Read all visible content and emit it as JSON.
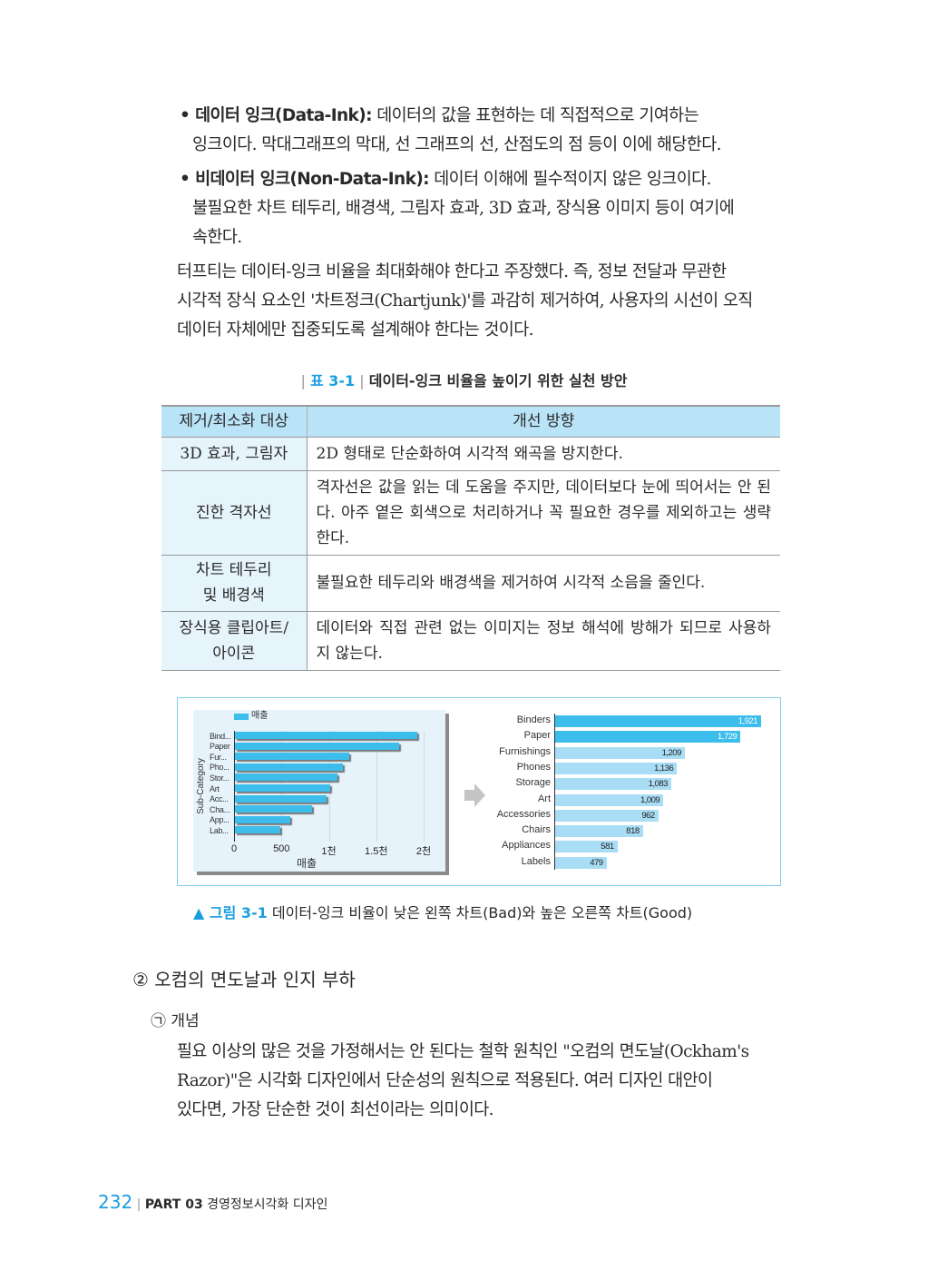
{
  "bullets": [
    {
      "term": "• 데이터 잉크(Data-Ink):",
      "lines": [
        " 데이터의 값을 표현하는 데 직접적으로 기여하는",
        "잉크이다. 막대그래프의 막대, 선 그래프의 선, 산점도의 점 등이 이에 해당한다."
      ]
    },
    {
      "term": "• 비데이터 잉크(Non-Data-Ink):",
      "lines": [
        " 데이터 이해에 필수적이지 않은 잉크이다.",
        "불필요한 차트 테두리, 배경색, 그림자 효과, 3D 효과, 장식용 이미지 등이 여기에",
        "속한다."
      ]
    }
  ],
  "paragraph1": [
    "터프티는 데이터-잉크 비율을 최대화해야 한다고 주장했다. 즉, 정보 전달과 무관한",
    "시각적 장식 요소인 '차트정크(Chartjunk)'를 과감히 제거하여, 사용자의 시선이 오직",
    "데이터 자체에만 집중되도록 설계해야 한다는 것이다."
  ],
  "table": {
    "caption_num": "표 3-1",
    "caption_text": "데이터-잉크 비율을 높이기 위한 실천 방안",
    "headers": [
      "제거/최소화 대상",
      "개선 방향"
    ],
    "rows": [
      [
        "3D 효과, 그림자",
        "2D 형태로 단순화하여 시각적 왜곡을 방지한다."
      ],
      [
        "진한 격자선",
        "격자선은 값을 읽는 데 도움을 주지만, 데이터보다 눈에 띄어서는 안 된다. 아주 옅은 회색으로 처리하거나 꼭 필요한 경우를 제외하고는 생략한다."
      ],
      [
        "차트 테두리 및 배경색",
        "불필요한 테두리와 배경색을 제거하여 시각적 소음을 줄인다."
      ],
      [
        "장식용 클립아트/ 아이콘",
        "데이터와 직접 관련 없는 이미지는 정보 해석에 방해가 되므로 사용하지 않는다."
      ]
    ]
  },
  "figure": {
    "caption_num": "▲ 그림 3-1",
    "caption_text": "데이터-잉크 비율이 낮은 왼쪽 차트(Bad)와 높은 오른쪽 차트(Good)",
    "bad_chart": {
      "type": "bar",
      "legend": "매출",
      "ylabel": "Sub-Category",
      "xlabel": "매출",
      "xticks": [
        "0",
        "500",
        "1천",
        "1.5천",
        "2천"
      ],
      "xlim": [
        0,
        2000
      ],
      "categories": [
        "Bind...",
        "Paper",
        "Fur...",
        "Pho...",
        "Stor...",
        "Art",
        "Acc...",
        "Cha...",
        "App...",
        "Lab..."
      ]
    },
    "good_chart": {
      "type": "bar",
      "categories": [
        "Binders",
        "Paper",
        "Furnishings",
        "Phones",
        "Storage",
        "Art",
        "Accessories",
        "Chairs",
        "Appliances",
        "Labels"
      ],
      "labels": [
        "1,921",
        "1,729",
        "1,209",
        "1,136",
        "1,083",
        "1,009",
        "962",
        "818",
        "581",
        "479"
      ],
      "highlight_count": 2,
      "highlight_color": "#3dbdeb",
      "base_color": "#a9dcf5"
    },
    "values": [
      1921,
      1729,
      1209,
      1136,
      1083,
      1009,
      962,
      818,
      581,
      479
    ],
    "bar_color": "#3dbdeb"
  },
  "section": {
    "title": "② 오컴의 면도날과 인지 부하",
    "sub": "㉠ 개념",
    "lines": [
      "필요 이상의 많은 것을 가정해서는 안 된다는 철학 원칙인 \"오컴의 면도날(Ockham's",
      "Razor)\"은 시각화 디자인에서 단순성의 원칙으로 적용된다. 여러 디자인 대안이",
      "있다면, 가장 단순한 것이 최선이라는 의미이다."
    ]
  },
  "footer": {
    "page": "232",
    "part": "PART 03",
    "chapter": "경영정보시각화 디자인"
  }
}
